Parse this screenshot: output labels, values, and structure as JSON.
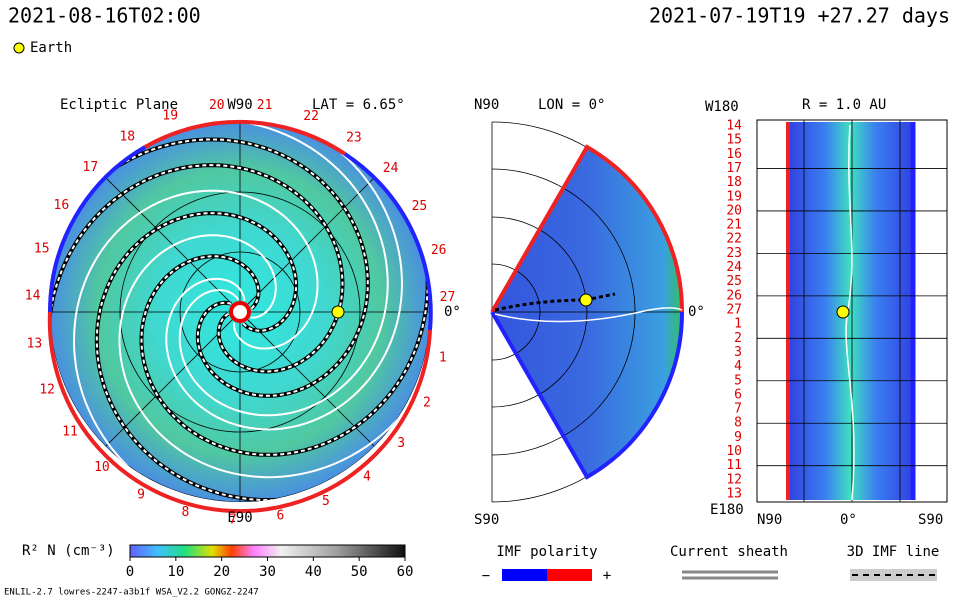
{
  "header": {
    "left": "2021-08-16T02:00",
    "right": "2021-07-19T19 +27.27 days",
    "legend": "Earth"
  },
  "ecliptic": {
    "title": "Ecliptic Plane",
    "top": "W90",
    "lat": "LAT = 6.65°",
    "bottom": "E90",
    "right": "0°",
    "days": [
      27,
      26,
      25,
      24,
      23,
      22,
      21,
      20,
      19,
      18,
      17,
      16,
      15,
      14,
      13,
      12,
      11,
      10,
      9,
      8,
      7,
      6,
      5,
      4,
      3,
      2,
      1
    ]
  },
  "meridional": {
    "top": "N90",
    "lon": "LON = 0°",
    "bottom": "S90",
    "right": "0°"
  },
  "radial": {
    "top": "W180",
    "title": "R = 1.0 AU",
    "bottom": "E180",
    "x_left": "N90",
    "x_mid": "0°",
    "x_right": "S90",
    "days": [
      14,
      15,
      16,
      17,
      18,
      19,
      20,
      21,
      22,
      23,
      24,
      25,
      26,
      27,
      1,
      2,
      3,
      4,
      5,
      6,
      7,
      8,
      9,
      10,
      11,
      12,
      13
    ]
  },
  "colorbar": {
    "label": "R² N (cm⁻³)",
    "lim": [
      0,
      60
    ],
    "ticks": [
      0,
      10,
      20,
      30,
      40,
      50,
      60
    ]
  },
  "legends": {
    "imf": "IMF polarity",
    "minus": "−",
    "plus": "+",
    "sheath": "Current sheath",
    "line": "3D IMF line"
  },
  "footer": "ENLIL-2.7 lowres-2247-a3b1f WSA_V2.2 GONGZ-2247"
}
